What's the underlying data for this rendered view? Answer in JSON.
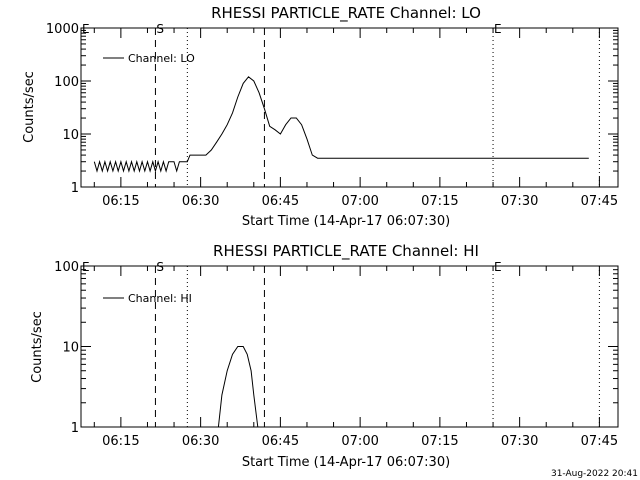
{
  "footer": {
    "timestamp": "31-Aug-2022 20:41"
  },
  "chart_data": [
    {
      "type": "line",
      "title": "RHESSI PARTICLE_RATE Channel: LO",
      "xlabel": "Start Time (14-Apr-17 06:07:30)",
      "ylabel": "Counts/sec",
      "yscale": "log",
      "xlim": [
        "06:07:30",
        "07:48:30"
      ],
      "ylim": [
        1,
        1000
      ],
      "xticks": [
        "06:15",
        "06:30",
        "06:45",
        "07:00",
        "07:15",
        "07:30",
        "07:45"
      ],
      "yticks": [
        {
          "value": 1,
          "label": "1"
        },
        {
          "value": 10,
          "label": "10"
        },
        {
          "value": 100,
          "label": "100"
        },
        {
          "value": 1000,
          "label": "1000"
        }
      ],
      "legend": {
        "label": "Channel: LO",
        "position": "top-left"
      },
      "markers": [
        {
          "label": "E",
          "time": "06:07:30",
          "style": "none"
        },
        {
          "label": "S",
          "time": "06:21:30",
          "style": "dashed"
        },
        {
          "label": "",
          "time": "06:27:30",
          "style": "dotted"
        },
        {
          "label": "",
          "time": "06:42:00",
          "style": "dashed"
        },
        {
          "label": "E",
          "time": "07:25:00",
          "style": "dotted"
        },
        {
          "label": "",
          "time": "07:45:00",
          "style": "dotted"
        }
      ],
      "series": [
        {
          "name": "Channel: LO",
          "x": [
            "06:10:00",
            "06:10:30",
            "06:11:00",
            "06:11:30",
            "06:12:00",
            "06:12:30",
            "06:13:00",
            "06:13:30",
            "06:14:00",
            "06:14:30",
            "06:15:00",
            "06:15:30",
            "06:16:00",
            "06:16:30",
            "06:17:00",
            "06:17:30",
            "06:18:00",
            "06:18:30",
            "06:19:00",
            "06:19:30",
            "06:20:00",
            "06:20:30",
            "06:21:00",
            "06:21:30",
            "06:22:00",
            "06:22:30",
            "06:23:00",
            "06:23:30",
            "06:24:00",
            "06:24:30",
            "06:25:00",
            "06:25:30",
            "06:26:00",
            "06:26:30",
            "06:27:00",
            "06:27:30",
            "06:28:00",
            "06:29:00",
            "06:30:00",
            "06:31:00",
            "06:32:00",
            "06:33:00",
            "06:34:00",
            "06:35:00",
            "06:36:00",
            "06:37:00",
            "06:38:00",
            "06:39:00",
            "06:40:00",
            "06:41:00",
            "06:42:00",
            "06:43:00",
            "06:44:00",
            "06:45:00",
            "06:46:00",
            "06:47:00",
            "06:48:00",
            "06:49:00",
            "06:50:00",
            "06:51:00",
            "06:52:00",
            "06:53:00",
            "06:54:00",
            "06:56:00",
            "06:58:00",
            "07:00:00",
            "07:02:00",
            "07:04:00",
            "07:06:00",
            "07:08:00",
            "07:10:00",
            "07:12:00",
            "07:13:00",
            "07:14:00",
            "07:15:00",
            "07:17:00",
            "07:19:00",
            "07:21:00",
            "07:23:00",
            "07:25:00",
            "07:27:00",
            "07:29:00",
            "07:31:00",
            "07:33:00",
            "07:35:00",
            "07:37:00",
            "07:39:00",
            "07:41:00",
            "07:43:00"
          ],
          "y": [
            3,
            2,
            3,
            2,
            3,
            2,
            3,
            2,
            3,
            2,
            3,
            2,
            3,
            2,
            3,
            2,
            3,
            2,
            3,
            2,
            3,
            2,
            3,
            2,
            3,
            2,
            3,
            2,
            3,
            3,
            3,
            2,
            3,
            3,
            3,
            3,
            4,
            4,
            4,
            4,
            5,
            7,
            10,
            15,
            25,
            50,
            90,
            120,
            100,
            60,
            30,
            14,
            12,
            10,
            15,
            20,
            20,
            15,
            8,
            4,
            3.5,
            3.5,
            3.5,
            3.5,
            3.5,
            3.5,
            3.5,
            3.5,
            3.5,
            3.5,
            3.5,
            3.5,
            3.5,
            3.5,
            3.5,
            3.5,
            3.5,
            3.5,
            3.5,
            3.5,
            3.5,
            3.5,
            3.5,
            3.5,
            3.5,
            3.5,
            3.5,
            3.5,
            3.5
          ]
        }
      ]
    },
    {
      "type": "line",
      "title": "RHESSI PARTICLE_RATE Channel: HI",
      "xlabel": "Start Time (14-Apr-17 06:07:30)",
      "ylabel": "Counts/sec",
      "yscale": "log",
      "xlim": [
        "06:07:30",
        "07:48:30"
      ],
      "ylim": [
        1,
        100
      ],
      "xticks": [
        "06:15",
        "06:30",
        "06:45",
        "07:00",
        "07:15",
        "07:30",
        "07:45"
      ],
      "yticks": [
        {
          "value": 1,
          "label": "1"
        },
        {
          "value": 10,
          "label": "10"
        },
        {
          "value": 100,
          "label": "100"
        }
      ],
      "legend": {
        "label": "Channel: HI",
        "position": "top-left"
      },
      "markers": [
        {
          "label": "E",
          "time": "06:07:30",
          "style": "none"
        },
        {
          "label": "S",
          "time": "06:21:30",
          "style": "dashed"
        },
        {
          "label": "",
          "time": "06:27:30",
          "style": "dotted"
        },
        {
          "label": "",
          "time": "06:42:00",
          "style": "dashed"
        },
        {
          "label": "E",
          "time": "07:25:00",
          "style": "dotted"
        },
        {
          "label": "",
          "time": "07:45:00",
          "style": "dotted"
        }
      ],
      "series": [
        {
          "name": "Channel: HI",
          "x": [
            "06:33:20",
            "06:34:00",
            "06:35:00",
            "06:36:00",
            "06:37:00",
            "06:38:00",
            "06:38:45",
            "06:39:30",
            "06:40:00",
            "06:40:45"
          ],
          "y": [
            1,
            2.5,
            5,
            8,
            10,
            10,
            8,
            5,
            2.5,
            1
          ]
        }
      ]
    }
  ]
}
